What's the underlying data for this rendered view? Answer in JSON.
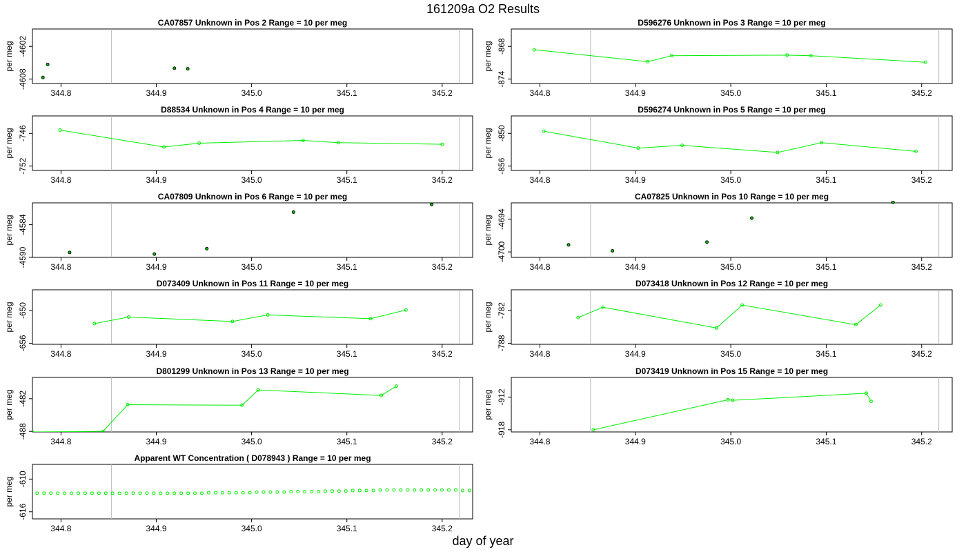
{
  "page": {
    "title": "161209a  O2 Results",
    "x_axis_title": "day of year"
  },
  "colors": {
    "series": "#00ee00",
    "flask_point_edge": "#000000",
    "flask_point_fill": "#00cc00",
    "marker_line": "#bbbbbb",
    "axis": "#000000"
  },
  "chart_data": [
    {
      "type": "scatter",
      "title": "CA07857    Unknown in Pos 2         Range = 10 per meg",
      "ylabel": "per meg",
      "xlim": [
        344.77,
        345.232
      ],
      "ylim": [
        -4608.8,
        -4598.8
      ],
      "xticks": [
        "344.8",
        "344.9",
        "345.0",
        "345.1",
        "345.2"
      ],
      "yticks": [
        "-4602",
        "-4608"
      ],
      "marker_lines": [
        344.853,
        345.218
      ],
      "x": [
        344.781,
        344.786,
        344.919,
        344.933
      ],
      "y": [
        -4607.7,
        -4605.3,
        -4606.0,
        -4606.1
      ],
      "connected": false
    },
    {
      "type": "line",
      "title": "D596276    Unknown in Pos 3         Range = 10 per meg",
      "ylabel": "per meg",
      "xlim": [
        344.77,
        345.232
      ],
      "ylim": [
        -874.8,
        -864.8
      ],
      "xticks": [
        "344.8",
        "344.9",
        "345.0",
        "345.1",
        "345.2"
      ],
      "yticks": [
        "-868",
        "-874"
      ],
      "marker_lines": [
        344.853,
        345.218
      ],
      "x": [
        344.794,
        344.913,
        344.938,
        345.059,
        345.084,
        345.204
      ],
      "y": [
        -868.6,
        -870.8,
        -869.7,
        -869.6,
        -869.7,
        -870.9
      ],
      "connected": true
    },
    {
      "type": "line",
      "title": "D88534    Unknown in Pos 4         Range = 10 per meg",
      "ylabel": "per meg",
      "xlim": [
        344.77,
        345.232
      ],
      "ylim": [
        -752.8,
        -742.8
      ],
      "xticks": [
        "344.8",
        "344.9",
        "345.0",
        "345.1",
        "345.2"
      ],
      "yticks": [
        "-746",
        "-752"
      ],
      "marker_lines": [
        344.853,
        345.218
      ],
      "x": [
        344.799,
        344.908,
        344.945,
        345.054,
        345.091,
        345.2
      ],
      "y": [
        -745.4,
        -748.5,
        -747.8,
        -747.3,
        -747.7,
        -748.0
      ],
      "connected": true
    },
    {
      "type": "line",
      "title": "D596274    Unknown in Pos 5         Range = 10 per meg",
      "ylabel": "per meg",
      "xlim": [
        344.77,
        345.232
      ],
      "ylim": [
        -856.8,
        -846.8
      ],
      "xticks": [
        "344.8",
        "344.9",
        "345.0",
        "345.1",
        "345.2"
      ],
      "yticks": [
        "-850",
        "-856"
      ],
      "marker_lines": [
        344.853,
        345.218
      ],
      "x": [
        344.804,
        344.903,
        344.949,
        345.049,
        345.095,
        345.194
      ],
      "y": [
        -849.6,
        -852.7,
        -852.2,
        -853.5,
        -851.7,
        -853.3
      ],
      "connected": true
    },
    {
      "type": "scatter",
      "title": "CA07809    Unknown in Pos 6         Range = 10 per meg",
      "ylabel": "per meg",
      "xlim": [
        344.77,
        345.232
      ],
      "ylim": [
        -4590.0,
        -4580.0
      ],
      "xticks": [
        "344.8",
        "344.9",
        "345.0",
        "345.1",
        "345.2"
      ],
      "yticks": [
        "-4584",
        "-4590"
      ],
      "marker_lines": [
        344.853,
        345.218
      ],
      "x": [
        344.809,
        344.898,
        344.953,
        345.044,
        345.189
      ],
      "y": [
        -4589.1,
        -4589.4,
        -4588.4,
        -4581.7,
        -4580.3
      ],
      "connected": false
    },
    {
      "type": "scatter",
      "title": "CA07825    Unknown in Pos 10         Range = 10 per meg",
      "ylabel": "per meg",
      "xlim": [
        344.77,
        345.232
      ],
      "ylim": [
        -4701.0,
        -4691.0
      ],
      "xticks": [
        "344.8",
        "344.9",
        "345.0",
        "345.1",
        "345.2"
      ],
      "yticks": [
        "-4694",
        "-4700"
      ],
      "marker_lines": [
        344.853,
        345.218
      ],
      "x": [
        344.83,
        344.876,
        344.975,
        345.022,
        345.17
      ],
      "y": [
        -4698.7,
        -4699.8,
        -4698.2,
        -4693.8,
        -4690.9
      ],
      "connected": false
    },
    {
      "type": "line",
      "title": "D073409    Unknown in Pos 11         Range = 10 per meg",
      "ylabel": "per meg",
      "xlim": [
        344.77,
        345.232
      ],
      "ylim": [
        -656.2,
        -646.2
      ],
      "xticks": [
        "344.8",
        "344.9",
        "345.0",
        "345.1",
        "345.2"
      ],
      "yticks": [
        "-650",
        "-656"
      ],
      "marker_lines": [
        344.853,
        345.218
      ],
      "x": [
        344.835,
        344.871,
        344.98,
        345.017,
        345.125,
        345.162
      ],
      "y": [
        -652.4,
        -651.2,
        -652.0,
        -650.8,
        -651.5,
        -649.9
      ],
      "connected": true
    },
    {
      "type": "line",
      "title": "D073418    Unknown in Pos 12         Range = 10 per meg",
      "ylabel": "per meg",
      "xlim": [
        344.77,
        345.232
      ],
      "ylim": [
        -788.2,
        -778.2
      ],
      "xticks": [
        "344.8",
        "344.9",
        "345.0",
        "345.1",
        "345.2"
      ],
      "yticks": [
        "-782",
        "-788"
      ],
      "marker_lines": [
        344.853,
        345.218
      ],
      "x": [
        344.84,
        344.866,
        344.985,
        345.012,
        345.131,
        345.157
      ],
      "y": [
        -783.3,
        -781.4,
        -785.2,
        -781.0,
        -784.6,
        -781.0
      ],
      "connected": true
    },
    {
      "type": "line",
      "title": "D801299    Unknown in Pos 13         Range = 10 per meg",
      "ylabel": "per meg",
      "xlim": [
        344.77,
        345.232
      ],
      "ylim": [
        -488.1,
        -478.1
      ],
      "xticks": [
        "344.8",
        "344.9",
        "345.0",
        "345.1",
        "345.2"
      ],
      "yticks": [
        "-482",
        "-488"
      ],
      "marker_lines": [
        344.853,
        345.218
      ],
      "x": [
        344.77,
        344.844,
        344.87,
        344.99,
        345.007,
        345.136,
        345.152
      ],
      "y": [
        -488.1,
        -488.0,
        -483.1,
        -483.2,
        -480.4,
        -481.4,
        -479.7
      ],
      "connected": true
    },
    {
      "type": "line",
      "title": "D073419    Unknown in Pos 15         Range = 10 per meg",
      "ylabel": "per meg",
      "xlim": [
        344.77,
        345.232
      ],
      "ylim": [
        -918.4,
        -908.4
      ],
      "xticks": [
        "344.8",
        "344.9",
        "345.0",
        "345.1",
        "345.2"
      ],
      "yticks": [
        "-912",
        "-918"
      ],
      "marker_lines": [
        344.853,
        345.218
      ],
      "x": [
        344.856,
        344.997,
        345.002,
        345.142,
        345.147
      ],
      "y": [
        -918.0,
        -912.5,
        -912.6,
        -911.3,
        -912.8
      ],
      "connected": true
    },
    {
      "type": "scatter",
      "title": "Apparent WT Concentration ( D078943 )         Range = 10 per meg",
      "ylabel": "per meg",
      "xlim": [
        344.77,
        345.232
      ],
      "ylim": [
        -617.3,
        -607.3
      ],
      "xticks": [
        "344.8",
        "344.9",
        "345.0",
        "345.1",
        "345.2"
      ],
      "yticks": [
        "-610",
        "-616"
      ],
      "marker_lines": [
        344.853,
        345.218
      ],
      "x_start": 344.775,
      "x_step": 0.0072,
      "y": [
        -612.6,
        -612.6,
        -612.6,
        -612.6,
        -612.6,
        -612.6,
        -612.6,
        -612.6,
        -612.6,
        -612.6,
        -612.6,
        -612.6,
        -612.6,
        -612.6,
        -612.6,
        -612.6,
        -612.6,
        -612.6,
        -612.6,
        -612.6,
        -612.6,
        -612.6,
        -612.6,
        -612.6,
        -612.6,
        -612.5,
        -612.5,
        -612.5,
        -612.5,
        -612.5,
        -612.5,
        -612.5,
        -612.4,
        -612.4,
        -612.4,
        -612.4,
        -612.4,
        -612.3,
        -612.3,
        -612.3,
        -612.3,
        -612.3,
        -612.2,
        -612.2,
        -612.2,
        -612.2,
        -612.1,
        -612.1,
        -612.1,
        -612.1,
        -612.0,
        -612.0,
        -612.0,
        -612.0,
        -612.0,
        -612.0,
        -612.0,
        -612.0,
        -612.0,
        -612.0,
        -612.0,
        -612.0,
        -612.1,
        -612.1,
        -612.1,
        -612.2,
        -612.2,
        -612.3,
        -612.3,
        -612.3,
        -612.4,
        -612.4,
        -612.4,
        -612.5,
        -612.5,
        -612.5,
        -612.5,
        -612.5,
        -612.5,
        -612.5,
        -612.6
      ],
      "connected": false
    }
  ]
}
